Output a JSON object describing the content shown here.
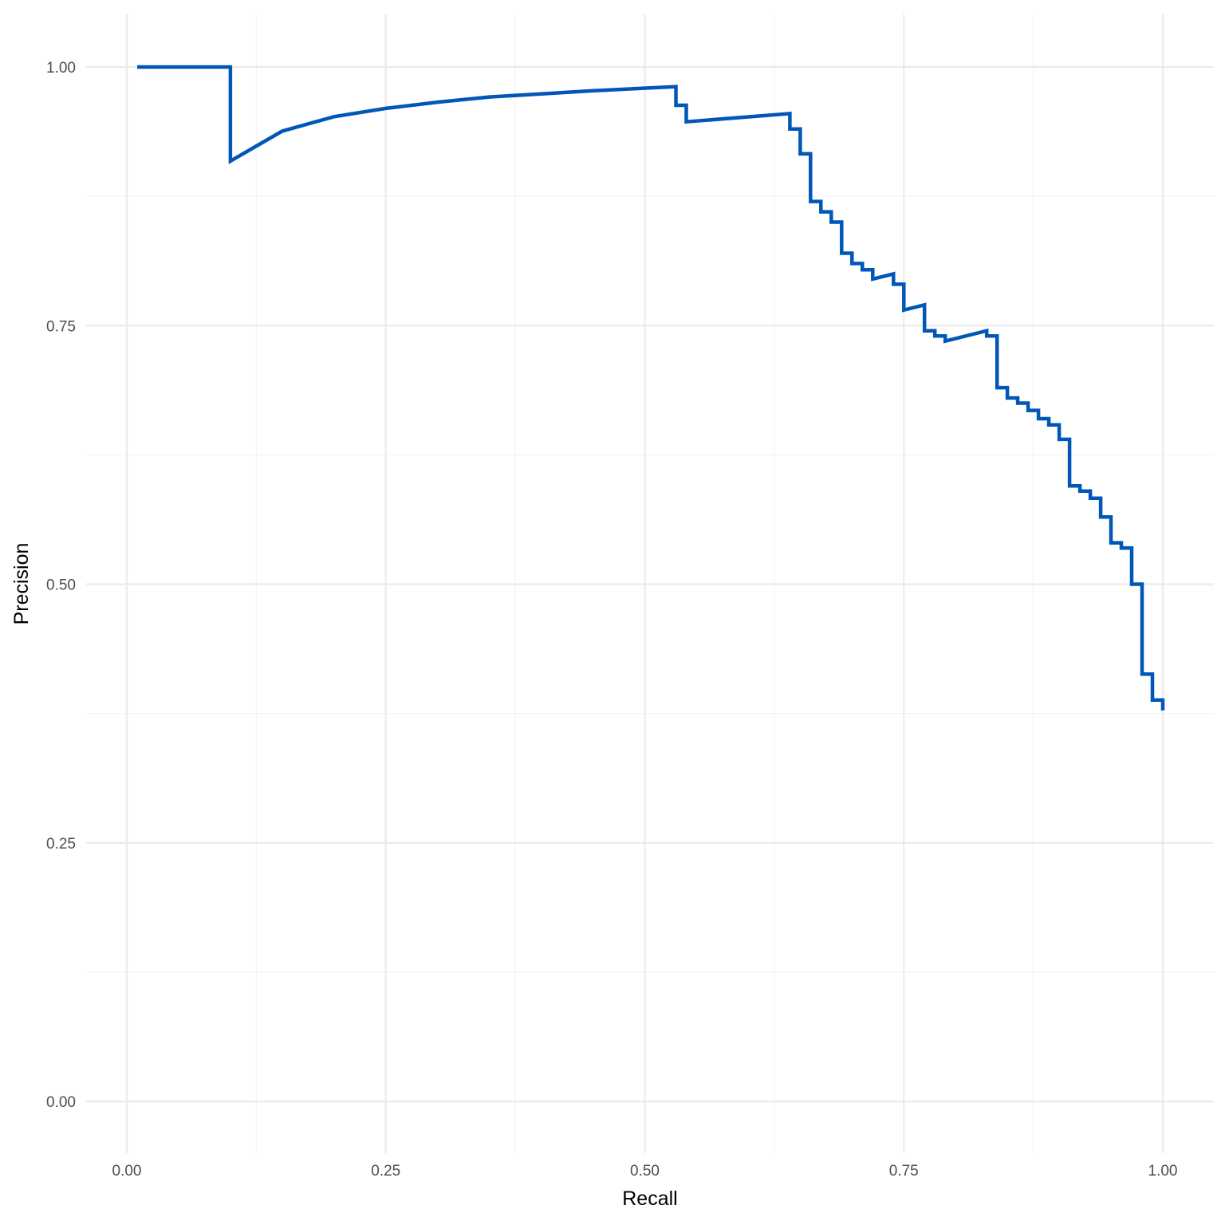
{
  "chart_data": {
    "type": "line",
    "title": "",
    "xlabel": "Recall",
    "ylabel": "Precision",
    "xlim": [
      0,
      1
    ],
    "ylim": [
      0,
      1
    ],
    "x_ticks": [
      "0.00",
      "0.25",
      "0.50",
      "0.75",
      "1.00"
    ],
    "y_ticks": [
      "0.00",
      "0.25",
      "0.50",
      "0.75",
      "1.00"
    ],
    "grid": true,
    "legend": "none",
    "line_color": "#0057b7",
    "series": [
      {
        "x": [
          0.01,
          0.1,
          0.1,
          0.15,
          0.2,
          0.25,
          0.3,
          0.35,
          0.4,
          0.45,
          0.53,
          0.53,
          0.54,
          0.54,
          0.64,
          0.64,
          0.65,
          0.65,
          0.66,
          0.66,
          0.67,
          0.67,
          0.68,
          0.68,
          0.69,
          0.69,
          0.7,
          0.7,
          0.71,
          0.71,
          0.72,
          0.72,
          0.74,
          0.74,
          0.75,
          0.75,
          0.77,
          0.77,
          0.78,
          0.78,
          0.79,
          0.79,
          0.83,
          0.83,
          0.84,
          0.84,
          0.85,
          0.85,
          0.86,
          0.86,
          0.87,
          0.87,
          0.88,
          0.88,
          0.89,
          0.89,
          0.9,
          0.9,
          0.91,
          0.91,
          0.92,
          0.92,
          0.93,
          0.93,
          0.94,
          0.94,
          0.95,
          0.95,
          0.96,
          0.96,
          0.97,
          0.97,
          0.98,
          0.98,
          0.99,
          0.99,
          1.0,
          1.0
        ],
        "y": [
          1.0,
          1.0,
          0.909,
          0.938,
          0.952,
          0.96,
          0.966,
          0.971,
          0.974,
          0.977,
          0.981,
          0.963,
          0.963,
          0.947,
          0.955,
          0.94,
          0.94,
          0.916,
          0.916,
          0.87,
          0.87,
          0.86,
          0.86,
          0.85,
          0.85,
          0.82,
          0.82,
          0.81,
          0.81,
          0.804,
          0.804,
          0.795,
          0.8,
          0.79,
          0.79,
          0.765,
          0.77,
          0.745,
          0.745,
          0.74,
          0.74,
          0.735,
          0.745,
          0.74,
          0.74,
          0.69,
          0.69,
          0.68,
          0.68,
          0.675,
          0.675,
          0.668,
          0.668,
          0.66,
          0.66,
          0.654,
          0.654,
          0.64,
          0.64,
          0.595,
          0.595,
          0.59,
          0.59,
          0.583,
          0.583,
          0.565,
          0.565,
          0.54,
          0.54,
          0.535,
          0.535,
          0.5,
          0.5,
          0.413,
          0.413,
          0.388,
          0.388,
          0.378
        ]
      }
    ]
  }
}
